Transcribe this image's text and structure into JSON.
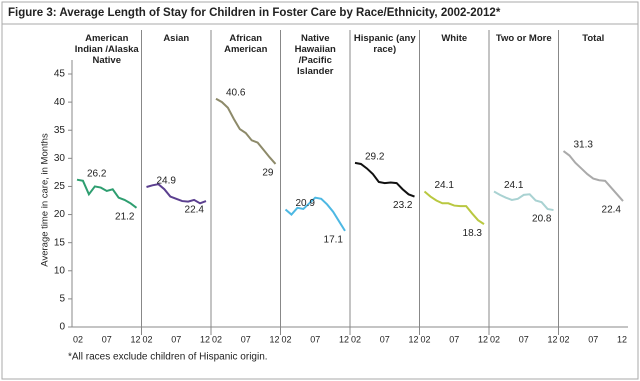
{
  "chart_data": {
    "type": "line",
    "title": "Figure 3: Average Length of Stay for Children in Foster Care by Race/Ethnicity, 2002-2012*",
    "y_label": "Average time in care, in Months",
    "note": "*All races exclude children of Hispanic origin.",
    "categories": [
      "02",
      null,
      null,
      null,
      null,
      "07",
      null,
      null,
      null,
      null,
      "12"
    ],
    "ylim": [
      0,
      45
    ],
    "yticks": [
      0,
      5,
      10,
      15,
      20,
      25,
      30,
      35,
      40,
      45
    ],
    "series": [
      {
        "name": "American Indian /Alaska Native",
        "color": "#2e9e70",
        "values": [
          26.2,
          26.0,
          23.6,
          25.0,
          24.8,
          24.2,
          24.5,
          23.0,
          22.6,
          22.0,
          21.2
        ]
      },
      {
        "name": "Asian",
        "color": "#5b3f8f",
        "values": [
          24.9,
          25.2,
          25.4,
          24.5,
          23.2,
          22.8,
          22.4,
          22.3,
          22.6,
          22.0,
          22.4
        ]
      },
      {
        "name": "African American",
        "color": "#8d8a6a",
        "values": [
          40.6,
          40.0,
          39.0,
          37.0,
          35.2,
          34.5,
          33.2,
          32.8,
          31.5,
          30.2,
          29.0
        ]
      },
      {
        "name": "Native Hawaiian /Pacific Islander",
        "color": "#4db8e3",
        "values": [
          20.9,
          20.0,
          21.2,
          21.0,
          22.0,
          23.0,
          22.8,
          21.8,
          20.5,
          18.8,
          17.1
        ]
      },
      {
        "name": "Hispanic (any race)",
        "color": "#111111",
        "values": [
          29.2,
          29.0,
          28.2,
          27.2,
          25.8,
          25.6,
          25.7,
          25.6,
          24.5,
          23.6,
          23.2
        ]
      },
      {
        "name": "White",
        "color": "#b9c840",
        "values": [
          24.1,
          23.2,
          22.5,
          22.0,
          22.0,
          21.6,
          21.5,
          21.5,
          20.2,
          19.0,
          18.3
        ]
      },
      {
        "name": "Two or More",
        "color": "#a9d2d2",
        "values": [
          24.1,
          23.5,
          23.0,
          22.6,
          22.8,
          23.5,
          23.6,
          22.5,
          22.2,
          21.0,
          20.8
        ]
      },
      {
        "name": "Total",
        "color": "#aaaaaa",
        "values": [
          31.3,
          30.5,
          29.2,
          28.2,
          27.2,
          26.4,
          26.1,
          26.0,
          24.8,
          23.6,
          22.4
        ]
      }
    ]
  }
}
